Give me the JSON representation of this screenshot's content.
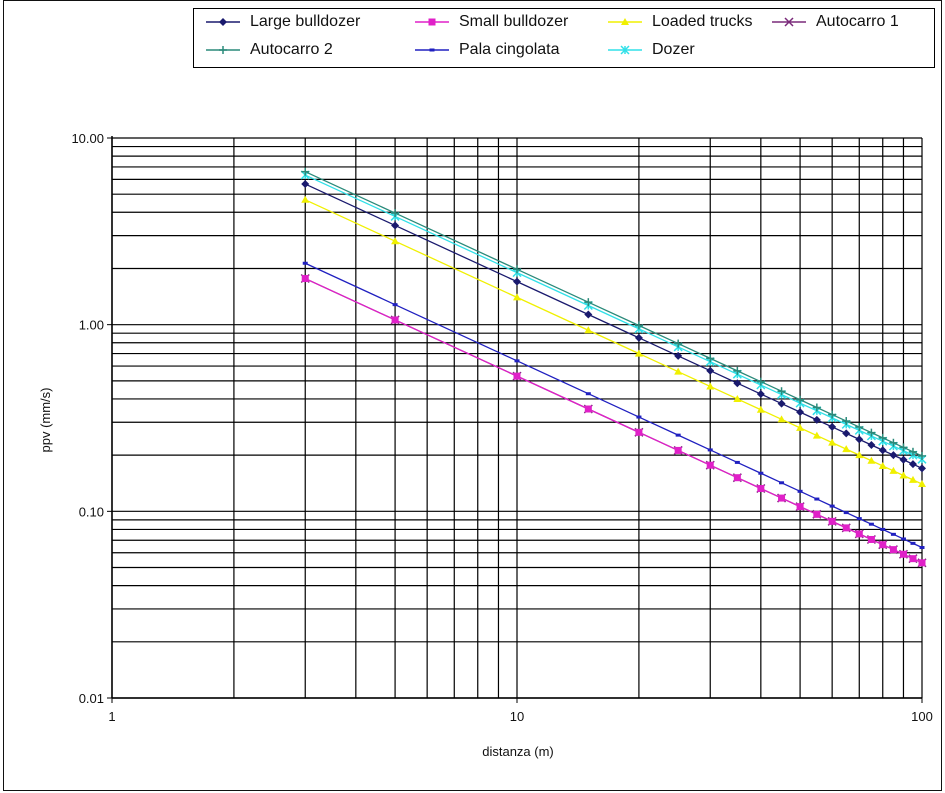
{
  "chart_data": {
    "type": "line",
    "title": "",
    "xlabel": "distanza (m)",
    "ylabel": "ppv (mm/s)",
    "xscale": "log",
    "yscale": "log",
    "xlim": [
      1,
      100
    ],
    "ylim": [
      0.01,
      10
    ],
    "grid": true,
    "legend_position": "top",
    "x_tick_labels": [
      "1",
      "10",
      "100"
    ],
    "y_tick_labels": [
      "0.01",
      "0.10",
      "1.00",
      "10.00"
    ],
    "x": [
      3,
      5,
      10,
      15,
      20,
      25,
      30,
      35,
      40,
      45,
      50,
      55,
      60,
      65,
      70,
      75,
      80,
      85,
      90,
      95,
      100
    ],
    "series": [
      {
        "name": "Large bulldozer",
        "color": "#1a1a6e",
        "marker": "diamond",
        "a": 17.0,
        "b": 1.0,
        "values": [
          5.67,
          3.4,
          1.7,
          1.13,
          0.85,
          0.68,
          0.57,
          0.49,
          0.43,
          0.38,
          0.34,
          0.31,
          0.28,
          0.26,
          0.24,
          0.23,
          0.21,
          0.2,
          0.19,
          0.18,
          0.17
        ]
      },
      {
        "name": "Small bulldozer",
        "color": "#e020c8",
        "marker": "square",
        "a": 5.3,
        "b": 1.0,
        "values": [
          1.77,
          1.06,
          0.53,
          0.35,
          0.27,
          0.21,
          0.18,
          0.15,
          0.13,
          0.12,
          0.11,
          0.1,
          0.09,
          0.08,
          0.08,
          0.07,
          0.07,
          0.06,
          0.06,
          0.06,
          0.05
        ]
      },
      {
        "name": "Loaded trucks",
        "color": "#f0f000",
        "marker": "triangle",
        "a": 14.0,
        "b": 1.0,
        "values": [
          4.67,
          2.8,
          1.4,
          0.93,
          0.7,
          0.56,
          0.47,
          0.4,
          0.35,
          0.31,
          0.28,
          0.25,
          0.23,
          0.22,
          0.2,
          0.19,
          0.18,
          0.16,
          0.16,
          0.15,
          0.14
        ]
      },
      {
        "name": "Autocarro 1",
        "color": "#7a2a7a",
        "marker": "x",
        "a": 5.3,
        "b": 1.0,
        "values": [
          1.77,
          1.06,
          0.53,
          0.35,
          0.27,
          0.21,
          0.18,
          0.15,
          0.13,
          0.12,
          0.11,
          0.1,
          0.09,
          0.08,
          0.08,
          0.07,
          0.07,
          0.06,
          0.06,
          0.06,
          0.05
        ]
      },
      {
        "name": "Autocarro 2",
        "color": "#2a8a7a",
        "marker": "plus",
        "a": 19.8,
        "b": 1.0,
        "values": [
          6.6,
          3.96,
          1.98,
          1.32,
          0.99,
          0.79,
          0.66,
          0.57,
          0.5,
          0.44,
          0.4,
          0.36,
          0.33,
          0.3,
          0.28,
          0.26,
          0.25,
          0.23,
          0.22,
          0.21,
          0.2
        ]
      },
      {
        "name": "Pala cingolata",
        "color": "#2020c0",
        "marker": "dash",
        "a": 6.4,
        "b": 1.0,
        "values": [
          2.13,
          1.28,
          0.64,
          0.43,
          0.32,
          0.26,
          0.21,
          0.18,
          0.16,
          0.14,
          0.13,
          0.12,
          0.11,
          0.1,
          0.09,
          0.09,
          0.08,
          0.08,
          0.07,
          0.07,
          0.06
        ]
      },
      {
        "name": "Dozer",
        "color": "#30e0e8",
        "marker": "star",
        "a": 19.0,
        "b": 1.0,
        "values": [
          6.33,
          3.8,
          1.9,
          1.27,
          0.95,
          0.76,
          0.63,
          0.54,
          0.48,
          0.42,
          0.38,
          0.35,
          0.32,
          0.29,
          0.27,
          0.25,
          0.24,
          0.22,
          0.21,
          0.2,
          0.19
        ]
      }
    ]
  }
}
